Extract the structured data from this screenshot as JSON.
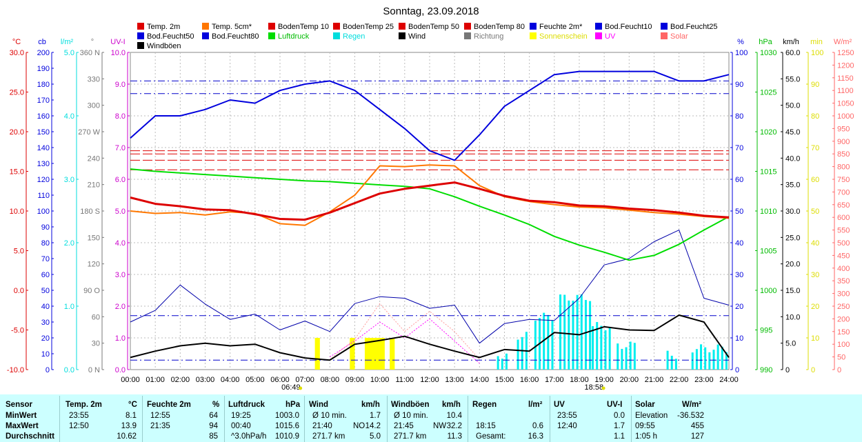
{
  "chart_data": {
    "type": "line",
    "title": "Sonntag, 23.09.2018",
    "legend": [
      {
        "name": "Temp. 2m",
        "color": "#dd0000"
      },
      {
        "name": "Temp. 5cm*",
        "color": "#ff7700"
      },
      {
        "name": "BodenTemp 10",
        "color": "#dd0000"
      },
      {
        "name": "BodenTemp 25",
        "color": "#dd0000"
      },
      {
        "name": "BodenTemp 50",
        "color": "#dd0000"
      },
      {
        "name": "BodenTemp 80",
        "color": "#dd0000"
      },
      {
        "name": "Feuchte 2m*",
        "color": "#0000dd"
      },
      {
        "name": "Bod.Feucht10",
        "color": "#0000dd"
      },
      {
        "name": "Bod.Feucht25",
        "color": "#0000dd"
      },
      {
        "name": "Bod.Feucht50",
        "color": "#0000dd"
      },
      {
        "name": "Bod.Feucht80",
        "color": "#0000dd"
      },
      {
        "name": "Luftdruck",
        "color": "#00dd00"
      },
      {
        "name": "Regen",
        "color": "#00dddd"
      },
      {
        "name": "Wind",
        "color": "#000000"
      },
      {
        "name": "Richtung",
        "color": "#777777"
      },
      {
        "name": "Sonnenschein",
        "color": "#ffff00"
      },
      {
        "name": "UV",
        "color": "#ff00ff"
      },
      {
        "name": "Solar",
        "color": "#ff6666"
      },
      {
        "name": "Windböen",
        "color": "#000000"
      }
    ],
    "axes_left": [
      {
        "unit": "°C",
        "color": "#dd0000",
        "min": -10,
        "max": 30,
        "ticks": [
          "-10.0",
          "-5.0",
          "0.0",
          "5.0",
          "10.0",
          "15.0",
          "20.0",
          "25.0",
          "30.0"
        ]
      },
      {
        "unit": "cb",
        "color": "#0000dd",
        "min": 0,
        "max": 200,
        "ticks": [
          "0",
          "10",
          "20",
          "30",
          "40",
          "50",
          "60",
          "70",
          "80",
          "90",
          "100",
          "110",
          "120",
          "130",
          "140",
          "150",
          "160",
          "170",
          "180",
          "190",
          "200"
        ]
      },
      {
        "unit": "l/m²",
        "color": "#00dddd",
        "min": 0,
        "max": 5,
        "ticks": [
          "0.0",
          "1.0",
          "2.0",
          "3.0",
          "4.0",
          "5.0"
        ]
      },
      {
        "unit": "°",
        "color": "#777777",
        "min": 0,
        "max": 360,
        "ticks": [
          "0",
          "30",
          "60",
          "90",
          "120",
          "150",
          "180",
          "210",
          "240",
          "270",
          "300",
          "330",
          "360"
        ],
        "compass": [
          "N",
          "",
          "",
          "O",
          "",
          "",
          "S",
          "",
          "",
          "W",
          "",
          "",
          "N"
        ]
      },
      {
        "unit": "UV-I",
        "color": "#cc00cc",
        "min": 0,
        "max": 10,
        "ticks": [
          "0.0",
          "1.0",
          "2.0",
          "3.0",
          "4.0",
          "5.0",
          "6.0",
          "7.0",
          "8.0",
          "9.0",
          "10.0"
        ]
      }
    ],
    "axes_right": [
      {
        "unit": "%",
        "color": "#0000dd",
        "min": 0,
        "max": 100,
        "ticks": [
          "0",
          "10",
          "20",
          "30",
          "40",
          "50",
          "60",
          "70",
          "80",
          "90",
          "100"
        ]
      },
      {
        "unit": "hPa",
        "color": "#00bb00",
        "min": 990,
        "max": 1030,
        "ticks": [
          "990",
          "995",
          "1000",
          "1005",
          "1010",
          "1015",
          "1020",
          "1025",
          "1030"
        ]
      },
      {
        "unit": "km/h",
        "color": "#000000",
        "min": 0,
        "max": 60,
        "ticks": [
          "0",
          "5.0",
          "10.0",
          "15.0",
          "20.0",
          "25.0",
          "30.0",
          "35.0",
          "40.0",
          "45.0",
          "50.0",
          "55.0",
          "60.0"
        ]
      },
      {
        "unit": "min",
        "color": "#dddd00",
        "min": 0,
        "max": 100,
        "ticks": [
          "0",
          "10",
          "20",
          "30",
          "40",
          "50",
          "60",
          "70",
          "80",
          "90",
          "100"
        ]
      },
      {
        "unit": "W/m²",
        "color": "#ff6666",
        "min": 0,
        "max": 1250,
        "ticks": [
          "0",
          "50",
          "100",
          "150",
          "200",
          "250",
          "300",
          "350",
          "400",
          "450",
          "500",
          "550",
          "600",
          "650",
          "700",
          "750",
          "800",
          "850",
          "900",
          "950",
          "1000",
          "1050",
          "1100",
          "1150",
          "1200",
          "1250"
        ]
      }
    ],
    "x_ticks": [
      "00:00",
      "01:00",
      "02:00",
      "03:00",
      "04:00",
      "05:00",
      "06:00",
      "07:00",
      "08:00",
      "09:00",
      "10:00",
      "11:00",
      "12:00",
      "13:00",
      "14:00",
      "15:00",
      "16:00",
      "17:00",
      "18:00",
      "19:00",
      "20:00",
      "21:00",
      "22:00",
      "23:00",
      "24:00"
    ],
    "sunrise": "06:49",
    "sunset": "18:58",
    "series": [
      {
        "name": "Temp. 2m",
        "axis": "°C",
        "hours": [
          0,
          1,
          2,
          3,
          4,
          5,
          6,
          7,
          8,
          9,
          10,
          11,
          12,
          13,
          14,
          15,
          16,
          17,
          18,
          19,
          20,
          21,
          22,
          23,
          24
        ],
        "values": [
          11.7,
          10.9,
          10.6,
          10.2,
          10.1,
          9.6,
          9.0,
          8.9,
          9.8,
          11.0,
          12.2,
          12.8,
          13.2,
          13.6,
          12.8,
          11.9,
          11.3,
          11.1,
          10.7,
          10.6,
          10.3,
          10.1,
          9.8,
          9.4,
          9.2
        ]
      },
      {
        "name": "Temp. 5cm*",
        "axis": "°C",
        "hours": [
          0,
          1,
          2,
          3,
          4,
          5,
          6,
          7,
          8,
          9,
          10,
          11,
          12,
          13,
          14,
          15,
          16,
          17,
          18,
          19,
          20,
          21,
          22,
          23,
          24
        ],
        "values": [
          10.0,
          9.7,
          9.8,
          9.5,
          9.9,
          9.7,
          8.4,
          8.2,
          9.9,
          12.0,
          15.7,
          15.6,
          15.8,
          15.7,
          13.2,
          11.8,
          11.2,
          10.8,
          10.5,
          10.4,
          10.1,
          9.8,
          9.6,
          9.3,
          9.1
        ]
      },
      {
        "name": "Feuchte 2m*",
        "axis": "%",
        "hours": [
          0,
          1,
          2,
          3,
          4,
          5,
          6,
          7,
          8,
          9,
          10,
          11,
          12,
          13,
          14,
          15,
          16,
          17,
          18,
          19,
          20,
          21,
          22,
          23,
          24
        ],
        "values": [
          73,
          80,
          80,
          82,
          85,
          84,
          88,
          90,
          91,
          88,
          82,
          76,
          69,
          66,
          74,
          83,
          88,
          93,
          94,
          94,
          94,
          94,
          91,
          91,
          93
        ]
      },
      {
        "name": "Luftdruck",
        "axis": "hPa",
        "hours": [
          0,
          1,
          2,
          3,
          4,
          5,
          6,
          7,
          8,
          9,
          10,
          11,
          12,
          13,
          14,
          15,
          16,
          17,
          18,
          19,
          20,
          21,
          22,
          23,
          24
        ],
        "values": [
          1015.3,
          1015.0,
          1014.8,
          1014.6,
          1014.4,
          1014.2,
          1014.0,
          1013.8,
          1013.7,
          1013.5,
          1013.3,
          1013.1,
          1012.8,
          1011.8,
          1010.6,
          1009.5,
          1008.3,
          1006.8,
          1005.7,
          1004.8,
          1003.8,
          1004.4,
          1005.8,
          1007.6,
          1009.3
        ]
      },
      {
        "name": "Wind",
        "axis": "km/h",
        "hours": [
          0,
          1,
          2,
          3,
          4,
          5,
          6,
          7,
          8,
          9,
          10,
          11,
          12,
          13,
          14,
          15,
          16,
          17,
          18,
          19,
          20,
          21,
          22,
          23,
          24
        ],
        "values": [
          2.3,
          3.5,
          4.5,
          5.0,
          4.5,
          4.8,
          3.2,
          2.2,
          1.8,
          4.8,
          5.5,
          6.3,
          4.8,
          3.5,
          2.3,
          3.8,
          3.5,
          7.0,
          6.6,
          8.1,
          7.5,
          7.4,
          10.3,
          9.0,
          2.3
        ]
      },
      {
        "name": "Windböen",
        "axis": "km/h",
        "hours": [
          0,
          1,
          2,
          3,
          4,
          5,
          6,
          7,
          8,
          9,
          10,
          11,
          12,
          13,
          14,
          15,
          16,
          17,
          18,
          19,
          20,
          21,
          22,
          23,
          24
        ],
        "values": [
          9.0,
          11.2,
          16.0,
          12.4,
          9.5,
          10.5,
          7.5,
          9.2,
          7.2,
          12.5,
          13.8,
          13.5,
          11.6,
          12.2,
          5.0,
          8.7,
          9.5,
          9.3,
          13.5,
          19.8,
          21.0,
          24.2,
          26.4,
          13.5,
          12.2
        ]
      },
      {
        "name": "UV",
        "axis": "UV-I",
        "hours": [
          8,
          9,
          10,
          11,
          12,
          13,
          14
        ],
        "values": [
          0.4,
          0.9,
          1.5,
          1.0,
          1.6,
          0.9,
          0.2
        ]
      },
      {
        "name": "Solar",
        "axis": "W/m²",
        "hours": [
          8,
          9,
          10,
          11,
          12,
          13,
          14
        ],
        "values": [
          40,
          120,
          260,
          150,
          230,
          150,
          40
        ]
      }
    ],
    "ground_lines": [
      {
        "name": "BodenTemp 10",
        "value": 6.9,
        "axis": "UV-I"
      },
      {
        "name": "BodenTemp 25",
        "value": 6.8,
        "axis": "UV-I"
      },
      {
        "name": "BodenTemp 50",
        "value": 6.6,
        "axis": "UV-I"
      },
      {
        "name": "BodenTemp 80",
        "value": 6.3,
        "axis": "UV-I"
      }
    ],
    "soil_moisture_lines": [
      {
        "name": "Bod.Feucht10",
        "value": 91
      },
      {
        "name": "Bod.Feucht25",
        "value": 87
      },
      {
        "name": "Bod.Feucht50",
        "value": 17
      },
      {
        "name": "Bod.Feucht80",
        "value": 3
      }
    ],
    "rain_periods_hours": [
      [
        14.7,
        15.2
      ],
      [
        15.5,
        16.0
      ],
      [
        16.2,
        17.0
      ],
      [
        17.2,
        18.4
      ],
      [
        18.5,
        19.3
      ],
      [
        19.5,
        20.2
      ],
      [
        21.5,
        22.0
      ],
      [
        22.5,
        23.9
      ]
    ],
    "sunshine_periods_hours": [
      [
        7.4,
        7.6
      ],
      [
        8.8,
        9.0
      ],
      [
        9.4,
        10.2
      ],
      [
        10.4,
        10.6
      ]
    ]
  },
  "stats": {
    "headers": {
      "sensor": "Sensor",
      "temp": "Temp. 2m",
      "temp_unit": "°C",
      "humid": "Feuchte 2m",
      "humid_unit": "%",
      "press": "Luftdruck",
      "press_unit": "hPa",
      "wind": "Wind",
      "wind_unit": "km/h",
      "gust": "Windböen",
      "gust_unit": "km/h",
      "rain": "Regen",
      "rain_unit": "l/m²",
      "uv": "UV",
      "uv_unit": "UV-I",
      "solar": "Solar",
      "solar_unit": "W/m²"
    },
    "rows": [
      {
        "label": "MinWert",
        "temp_t": "23:55",
        "temp_v": "8.1",
        "humid_t": "12:55",
        "humid_v": "64",
        "press_t": "19:25",
        "press_v": "1003.0",
        "wind_t": "Ø 10 min.",
        "wind_d": "",
        "wind_v": "1.7",
        "gust_t": "Ø 10 min.",
        "gust_d": "",
        "gust_v": "10.4",
        "rain_t": "",
        "rain_v": "",
        "uv_t": "23:55",
        "uv_v": "0.0",
        "solar_t": "Elevation",
        "solar_v": "-36.532"
      },
      {
        "label": "MaxWert",
        "temp_t": "12:50",
        "temp_v": "13.9",
        "humid_t": "21:35",
        "humid_v": "94",
        "press_t": "00:40",
        "press_v": "1015.6",
        "wind_t": "21:40",
        "wind_d": "NO",
        "wind_v": "14.2",
        "gust_t": "21:45",
        "gust_d": "NW",
        "gust_v": "32.2",
        "rain_t": "18:15",
        "rain_v": "0.6",
        "uv_t": "12:40",
        "uv_v": "1.7",
        "solar_t": "09:55",
        "solar_v": "455"
      },
      {
        "label": "Durchschnitt",
        "temp_t": "",
        "temp_v": "10.62",
        "humid_t": "",
        "humid_v": "85",
        "press_t": "^3.0hPa/h",
        "press_v": "1010.9",
        "wind_t": "271.7 km",
        "wind_d": "",
        "wind_v": "5.0",
        "gust_t": "271.7 km",
        "gust_d": "",
        "gust_v": "11.3",
        "rain_t": "Gesamt:",
        "rain_v": "16.3",
        "uv_t": "",
        "uv_v": "1.1",
        "solar_t": "1:05 h",
        "solar_v": "127"
      }
    ]
  }
}
